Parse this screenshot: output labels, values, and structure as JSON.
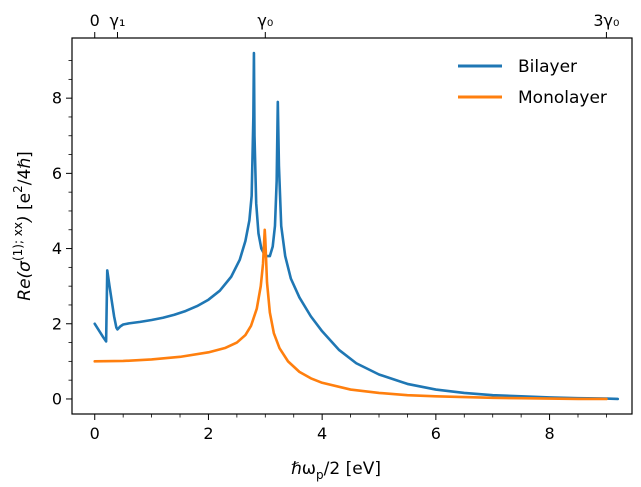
{
  "chart_data": {
    "type": "line",
    "xlabel": "ℏω_p/2  [eV]",
    "ylabel": "Re(σ^(1);xx)  [e²/4ℏ]",
    "xlim": [
      -0.4,
      9.45
    ],
    "ylim": [
      -0.4,
      9.6
    ],
    "x_ticks": [
      0,
      2,
      4,
      6,
      8
    ],
    "y_ticks": [
      0,
      2,
      4,
      6,
      8
    ],
    "top_axis": {
      "ticks": [
        {
          "x": 0,
          "label": "0"
        },
        {
          "x": 0.4,
          "label": "γ₁"
        },
        {
          "x": 3.0,
          "label": "γ₀"
        },
        {
          "x": 9.0,
          "label": "3γ₀"
        }
      ]
    },
    "legend": {
      "position": "upper-right"
    },
    "grid": false,
    "series": [
      {
        "name": "Bilayer",
        "color": "#1f77b4",
        "points": [
          [
            0.0,
            2.0
          ],
          [
            0.05,
            1.88
          ],
          [
            0.1,
            1.76
          ],
          [
            0.15,
            1.64
          ],
          [
            0.2,
            1.53
          ],
          [
            0.2,
            1.53
          ],
          [
            0.22,
            3.42
          ],
          [
            0.26,
            3.0
          ],
          [
            0.3,
            2.6
          ],
          [
            0.34,
            2.2
          ],
          [
            0.38,
            1.9
          ],
          [
            0.4,
            1.85
          ],
          [
            0.45,
            1.93
          ],
          [
            0.5,
            1.98
          ],
          [
            0.6,
            2.01
          ],
          [
            0.8,
            2.05
          ],
          [
            1.0,
            2.1
          ],
          [
            1.2,
            2.16
          ],
          [
            1.4,
            2.24
          ],
          [
            1.6,
            2.34
          ],
          [
            1.8,
            2.47
          ],
          [
            2.0,
            2.64
          ],
          [
            2.2,
            2.88
          ],
          [
            2.4,
            3.25
          ],
          [
            2.55,
            3.7
          ],
          [
            2.65,
            4.2
          ],
          [
            2.72,
            4.75
          ],
          [
            2.76,
            5.4
          ],
          [
            2.79,
            7.5
          ],
          [
            2.8,
            9.2
          ],
          [
            2.81,
            7.0
          ],
          [
            2.84,
            5.2
          ],
          [
            2.88,
            4.4
          ],
          [
            2.93,
            4.0
          ],
          [
            3.0,
            3.8
          ],
          [
            3.08,
            3.8
          ],
          [
            3.13,
            4.05
          ],
          [
            3.17,
            4.6
          ],
          [
            3.2,
            5.8
          ],
          [
            3.22,
            7.9
          ],
          [
            3.24,
            6.2
          ],
          [
            3.28,
            4.6
          ],
          [
            3.35,
            3.8
          ],
          [
            3.45,
            3.2
          ],
          [
            3.6,
            2.7
          ],
          [
            3.8,
            2.2
          ],
          [
            4.0,
            1.8
          ],
          [
            4.3,
            1.3
          ],
          [
            4.6,
            0.95
          ],
          [
            5.0,
            0.65
          ],
          [
            5.5,
            0.4
          ],
          [
            6.0,
            0.25
          ],
          [
            6.5,
            0.16
          ],
          [
            7.0,
            0.1
          ],
          [
            7.5,
            0.07
          ],
          [
            8.0,
            0.04
          ],
          [
            8.5,
            0.02
          ],
          [
            9.0,
            0.01
          ],
          [
            9.2,
            0.0
          ]
        ]
      },
      {
        "name": "Monolayer",
        "color": "#ff7f0e",
        "points": [
          [
            0.0,
            1.0
          ],
          [
            0.5,
            1.01
          ],
          [
            1.0,
            1.05
          ],
          [
            1.5,
            1.12
          ],
          [
            2.0,
            1.24
          ],
          [
            2.3,
            1.36
          ],
          [
            2.5,
            1.5
          ],
          [
            2.65,
            1.7
          ],
          [
            2.75,
            1.95
          ],
          [
            2.85,
            2.4
          ],
          [
            2.92,
            3.0
          ],
          [
            2.96,
            3.6
          ],
          [
            2.99,
            4.5
          ],
          [
            3.0,
            4.25
          ],
          [
            3.03,
            3.1
          ],
          [
            3.08,
            2.3
          ],
          [
            3.15,
            1.75
          ],
          [
            3.25,
            1.35
          ],
          [
            3.4,
            1.0
          ],
          [
            3.6,
            0.72
          ],
          [
            3.8,
            0.55
          ],
          [
            4.0,
            0.43
          ],
          [
            4.5,
            0.25
          ],
          [
            5.0,
            0.16
          ],
          [
            5.5,
            0.1
          ],
          [
            6.0,
            0.07
          ],
          [
            6.5,
            0.05
          ],
          [
            7.0,
            0.03
          ],
          [
            7.5,
            0.02
          ],
          [
            8.0,
            0.01
          ],
          [
            8.5,
            0.0
          ],
          [
            9.0,
            0.0
          ]
        ]
      }
    ]
  }
}
